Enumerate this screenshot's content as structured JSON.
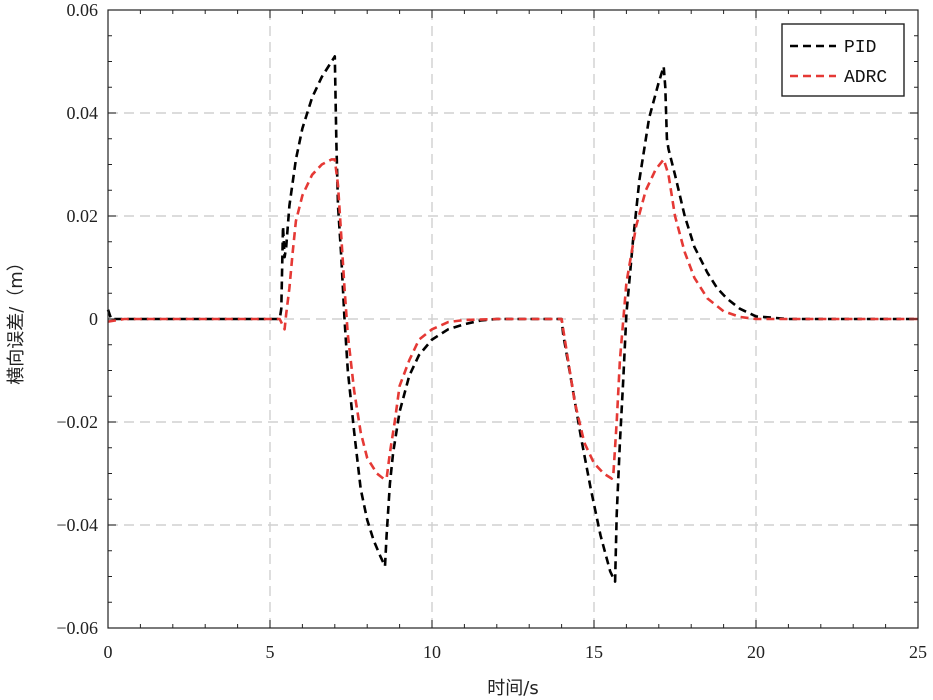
{
  "chart_data": {
    "type": "line",
    "xlabel": "时间/s",
    "ylabel": "横向误差/（m）",
    "xlim": [
      0,
      25
    ],
    "ylim": [
      -0.06,
      0.06
    ],
    "x_ticks": [
      0,
      5,
      10,
      15,
      20,
      25
    ],
    "x_tick_labels": [
      "0",
      "5",
      "10",
      "15",
      "20",
      "25"
    ],
    "y_ticks": [
      -0.06,
      -0.04,
      -0.02,
      0,
      0.02,
      0.04,
      0.06
    ],
    "y_tick_labels": [
      "−0.06",
      "−0.04",
      "−0.02",
      "0",
      "0.02",
      "0.04",
      "0.06"
    ],
    "grid": true,
    "legend_position": "top-right",
    "series": [
      {
        "name": "PID",
        "color": "#000000",
        "points": [
          [
            0,
            0.0018
          ],
          [
            0.1,
            0
          ],
          [
            0.5,
            0
          ],
          [
            1,
            0
          ],
          [
            2,
            0
          ],
          [
            3,
            0
          ],
          [
            4,
            0
          ],
          [
            5,
            0
          ],
          [
            5.3,
            0
          ],
          [
            5.35,
            0.002
          ],
          [
            5.4,
            0.018
          ],
          [
            5.45,
            0.012
          ],
          [
            5.5,
            0.014
          ],
          [
            5.6,
            0.022
          ],
          [
            5.8,
            0.031
          ],
          [
            6,
            0.037
          ],
          [
            6.3,
            0.043
          ],
          [
            6.6,
            0.047
          ],
          [
            6.9,
            0.05
          ],
          [
            7.0,
            0.051
          ],
          [
            7.05,
            0.034
          ],
          [
            7.1,
            0.022
          ],
          [
            7.2,
            0.012
          ],
          [
            7.3,
            0.0
          ],
          [
            7.4,
            -0.01
          ],
          [
            7.6,
            -0.022
          ],
          [
            7.8,
            -0.033
          ],
          [
            8.0,
            -0.039
          ],
          [
            8.2,
            -0.043
          ],
          [
            8.4,
            -0.046
          ],
          [
            8.55,
            -0.048
          ],
          [
            8.6,
            -0.042
          ],
          [
            8.7,
            -0.032
          ],
          [
            8.8,
            -0.026
          ],
          [
            9.0,
            -0.018
          ],
          [
            9.3,
            -0.011
          ],
          [
            9.6,
            -0.007
          ],
          [
            10,
            -0.004
          ],
          [
            10.5,
            -0.002
          ],
          [
            11,
            -0.001
          ],
          [
            11.5,
            -0.0003
          ],
          [
            12,
            0
          ],
          [
            13,
            0
          ],
          [
            14,
            0
          ],
          [
            14.05,
            -0.003
          ],
          [
            14.3,
            -0.012
          ],
          [
            14.6,
            -0.023
          ],
          [
            14.9,
            -0.033
          ],
          [
            15.2,
            -0.042
          ],
          [
            15.5,
            -0.049
          ],
          [
            15.65,
            -0.051
          ],
          [
            15.7,
            -0.038
          ],
          [
            15.8,
            -0.024
          ],
          [
            15.9,
            -0.012
          ],
          [
            16,
            0.001
          ],
          [
            16.2,
            0.015
          ],
          [
            16.4,
            0.027
          ],
          [
            16.7,
            0.039
          ],
          [
            17.0,
            0.046
          ],
          [
            17.15,
            0.049
          ],
          [
            17.2,
            0.045
          ],
          [
            17.25,
            0.035
          ],
          [
            17.3,
            0.033
          ],
          [
            17.5,
            0.028
          ],
          [
            17.8,
            0.02
          ],
          [
            18.1,
            0.014
          ],
          [
            18.5,
            0.009
          ],
          [
            18.8,
            0.006
          ],
          [
            19.1,
            0.004
          ],
          [
            19.5,
            0.002
          ],
          [
            20,
            0.0005
          ],
          [
            21,
            0
          ],
          [
            22,
            0
          ],
          [
            23,
            0
          ],
          [
            24,
            0
          ],
          [
            25,
            0
          ]
        ]
      },
      {
        "name": "ADRC",
        "color": "#e53935",
        "points": [
          [
            0,
            -0.0005
          ],
          [
            0.5,
            0
          ],
          [
            1,
            0
          ],
          [
            2,
            0
          ],
          [
            3,
            0
          ],
          [
            4,
            0
          ],
          [
            5,
            0
          ],
          [
            5.3,
            0
          ],
          [
            5.45,
            -0.002
          ],
          [
            5.5,
            0.001
          ],
          [
            5.6,
            0.006
          ],
          [
            5.7,
            0.013
          ],
          [
            5.8,
            0.019
          ],
          [
            6,
            0.024
          ],
          [
            6.3,
            0.028
          ],
          [
            6.6,
            0.03
          ],
          [
            6.9,
            0.031
          ],
          [
            7.0,
            0.031
          ],
          [
            7.1,
            0.026
          ],
          [
            7.2,
            0.016
          ],
          [
            7.3,
            0.006
          ],
          [
            7.4,
            -0.003
          ],
          [
            7.6,
            -0.014
          ],
          [
            7.8,
            -0.022
          ],
          [
            8.0,
            -0.027
          ],
          [
            8.3,
            -0.03
          ],
          [
            8.5,
            -0.031
          ],
          [
            8.6,
            -0.031
          ],
          [
            8.7,
            -0.026
          ],
          [
            8.85,
            -0.02
          ],
          [
            9.0,
            -0.013
          ],
          [
            9.3,
            -0.008
          ],
          [
            9.6,
            -0.004
          ],
          [
            10,
            -0.002
          ],
          [
            10.5,
            -0.0006
          ],
          [
            11,
            -0.0002
          ],
          [
            12,
            0
          ],
          [
            13,
            0
          ],
          [
            14,
            0
          ],
          [
            14.05,
            -0.002
          ],
          [
            14.2,
            -0.008
          ],
          [
            14.4,
            -0.016
          ],
          [
            14.7,
            -0.024
          ],
          [
            15.0,
            -0.028
          ],
          [
            15.3,
            -0.03
          ],
          [
            15.55,
            -0.031
          ],
          [
            15.6,
            -0.03
          ],
          [
            15.7,
            -0.02
          ],
          [
            15.8,
            -0.008
          ],
          [
            16.0,
            0.007
          ],
          [
            16.3,
            0.018
          ],
          [
            16.6,
            0.025
          ],
          [
            16.9,
            0.029
          ],
          [
            17.15,
            0.031
          ],
          [
            17.3,
            0.028
          ],
          [
            17.5,
            0.02
          ],
          [
            17.8,
            0.013
          ],
          [
            18.1,
            0.008
          ],
          [
            18.5,
            0.004
          ],
          [
            19,
            0.0015
          ],
          [
            19.5,
            0.0004
          ],
          [
            20,
            0
          ],
          [
            21,
            0
          ],
          [
            22,
            0
          ],
          [
            23,
            0
          ],
          [
            24,
            0
          ],
          [
            25,
            0
          ]
        ]
      }
    ]
  }
}
